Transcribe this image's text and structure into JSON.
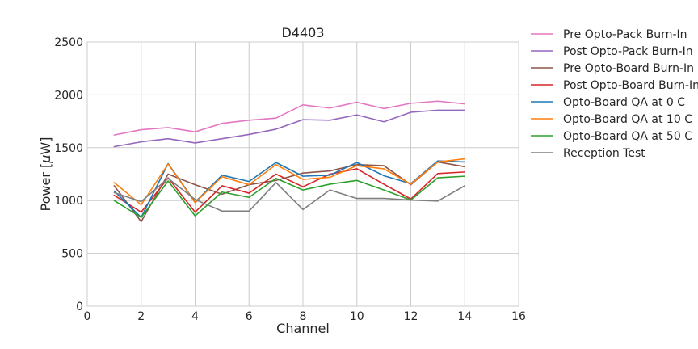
{
  "chart_data": {
    "type": "line",
    "title": "D4403",
    "xlabel": "Channel",
    "ylabel_prefix": "Power [",
    "ylabel_mu": "μ",
    "ylabel_suffix": "W]",
    "xlim": [
      0,
      16
    ],
    "ylim": [
      0,
      2500
    ],
    "xticks": [
      0,
      2,
      4,
      6,
      8,
      10,
      12,
      14,
      16
    ],
    "yticks": [
      0,
      500,
      1000,
      1500,
      2000,
      2500
    ],
    "grid": true,
    "legend_position": "outside-right",
    "x": [
      1,
      2,
      3,
      4,
      5,
      6,
      7,
      8,
      9,
      10,
      11,
      12,
      13,
      14
    ],
    "series": [
      {
        "name": "Pre Opto-Pack Burn-In",
        "color": "#e377c2",
        "values": [
          1620,
          1670,
          1690,
          1650,
          1730,
          1760,
          1780,
          1905,
          1875,
          1930,
          1870,
          1920,
          1940,
          1915
        ]
      },
      {
        "name": "Post Opto-Pack Burn-In",
        "color": "#9467bd",
        "values": [
          1510,
          1555,
          1585,
          1545,
          1585,
          1625,
          1675,
          1765,
          1760,
          1810,
          1745,
          1835,
          1855,
          1855
        ]
      },
      {
        "name": "Pre Opto-Board Burn-In",
        "color": "#8c564b",
        "values": [
          1140,
          800,
          1250,
          1150,
          1060,
          1150,
          1190,
          1260,
          1280,
          1340,
          1330,
          1150,
          1365,
          1320
        ]
      },
      {
        "name": "Post Opto-Board Burn-In",
        "color": "#d62728",
        "values": [
          1050,
          890,
          1215,
          890,
          1140,
          1070,
          1250,
          1130,
          1250,
          1300,
          1155,
          1015,
          1255,
          1270
        ]
      },
      {
        "name": "Opto-Board QA at 0 C",
        "color": "#1f77b4",
        "values": [
          1090,
          840,
          1350,
          985,
          1240,
          1180,
          1360,
          1230,
          1240,
          1360,
          1235,
          1160,
          1375,
          1365
        ]
      },
      {
        "name": "Opto-Board QA at 10 C",
        "color": "#ff7f0e",
        "values": [
          1170,
          960,
          1345,
          980,
          1225,
          1150,
          1340,
          1200,
          1220,
          1330,
          1300,
          1155,
          1365,
          1395
        ]
      },
      {
        "name": "Opto-Board QA at 50 C",
        "color": "#2ca02c",
        "values": [
          1000,
          840,
          1185,
          855,
          1080,
          1030,
          1210,
          1100,
          1155,
          1190,
          1100,
          1005,
          1215,
          1230
        ]
      },
      {
        "name": "Reception Test",
        "color": "#7f7f7f",
        "values": [
          1075,
          990,
          1210,
          1010,
          900,
          900,
          1170,
          915,
          1100,
          1020,
          1020,
          1005,
          995,
          1140
        ]
      }
    ]
  }
}
